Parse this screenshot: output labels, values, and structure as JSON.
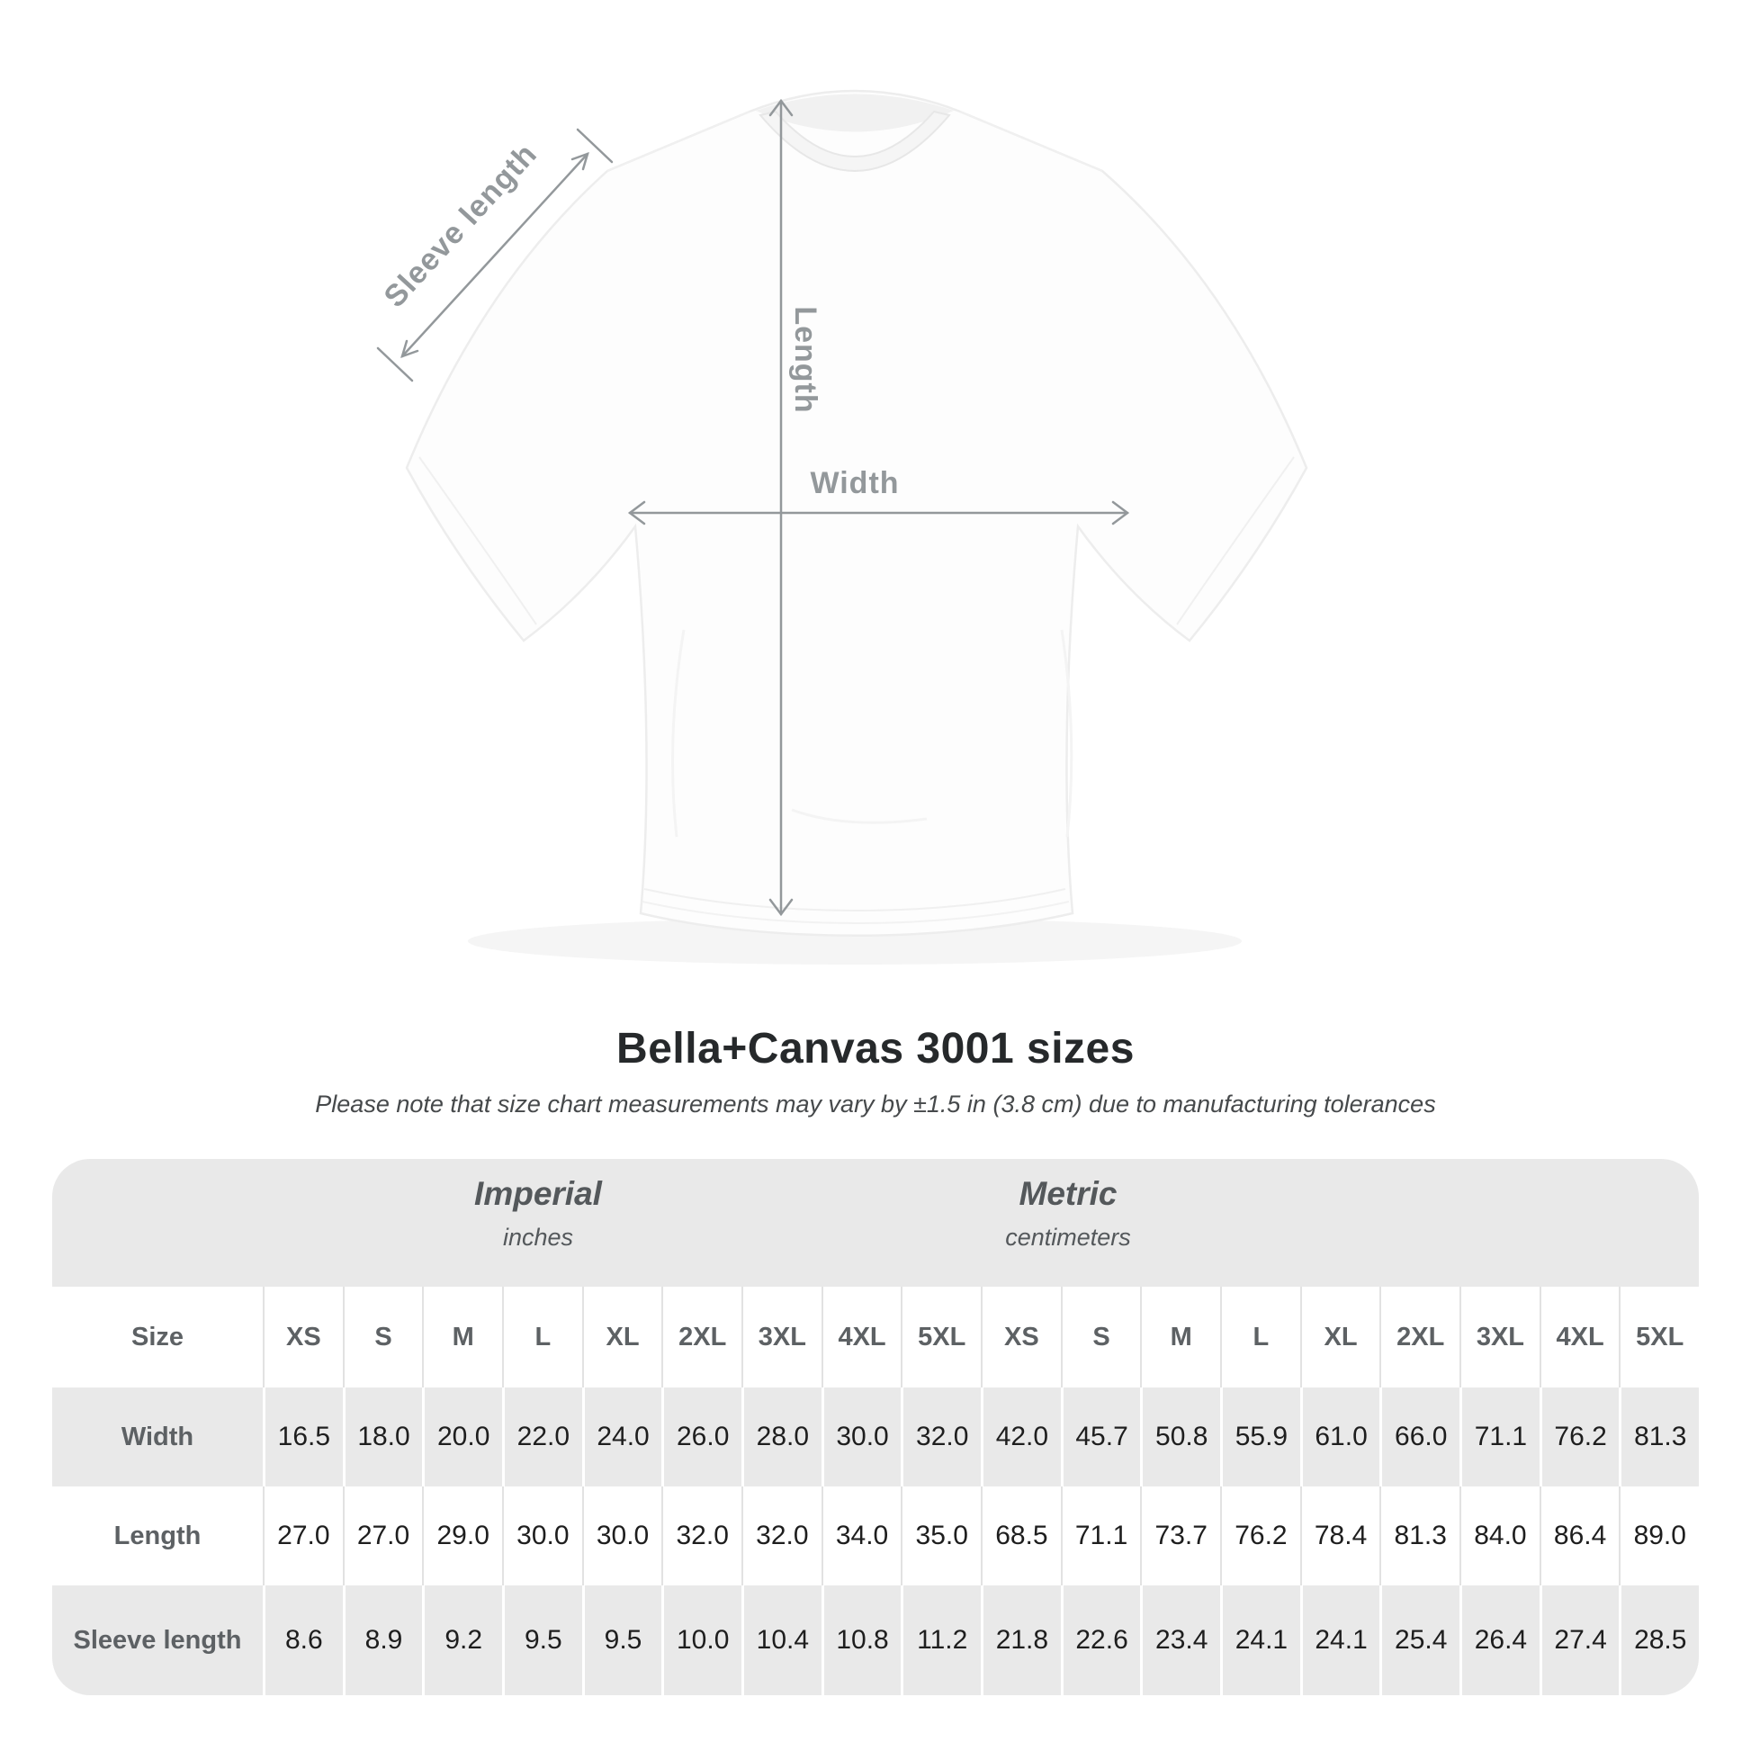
{
  "diagram": {
    "labels": {
      "sleeve_length": "Sleeve length",
      "length": "Length",
      "width": "Width"
    }
  },
  "title": "Bella+Canvas 3001 sizes",
  "subtitle": "Please note that size chart measurements may vary by ±1.5 in (3.8 cm) due to manufacturing tolerances",
  "table": {
    "unit_groups": [
      {
        "name": "Imperial",
        "unit": "inches"
      },
      {
        "name": "Metric",
        "unit": "centimeters"
      }
    ],
    "size_col_header": "Size",
    "sizes": [
      "XS",
      "S",
      "M",
      "L",
      "XL",
      "2XL",
      "3XL",
      "4XL",
      "5XL"
    ],
    "rows": [
      {
        "label": "Width",
        "imperial": [
          "16.5",
          "18.0",
          "20.0",
          "22.0",
          "24.0",
          "26.0",
          "28.0",
          "30.0",
          "32.0"
        ],
        "metric": [
          "42.0",
          "45.7",
          "50.8",
          "55.9",
          "61.0",
          "66.0",
          "71.1",
          "76.2",
          "81.3"
        ]
      },
      {
        "label": "Length",
        "imperial": [
          "27.0",
          "27.0",
          "29.0",
          "30.0",
          "30.0",
          "32.0",
          "32.0",
          "34.0",
          "35.0"
        ],
        "metric": [
          "68.5",
          "71.1",
          "73.7",
          "76.2",
          "78.4",
          "81.3",
          "84.0",
          "86.4",
          "89.0"
        ]
      },
      {
        "label": "Sleeve length",
        "imperial": [
          "8.6",
          "8.9",
          "9.2",
          "9.5",
          "9.5",
          "10.0",
          "10.4",
          "10.8",
          "11.2"
        ],
        "metric": [
          "21.8",
          "22.6",
          "23.4",
          "24.1",
          "24.1",
          "25.4",
          "26.4",
          "27.4",
          "28.5"
        ]
      }
    ]
  },
  "colors": {
    "table_band": "#e9e9e9",
    "divider_on_white": "#e2e2e2",
    "divider_on_gray": "#ffffff",
    "header_text": "#5d6164",
    "number_text": "#1e1e1e",
    "title_text": "#26292b",
    "subtitle_text": "#46494b",
    "annotation": "#93989b",
    "shirt_outline": "#ededed"
  }
}
